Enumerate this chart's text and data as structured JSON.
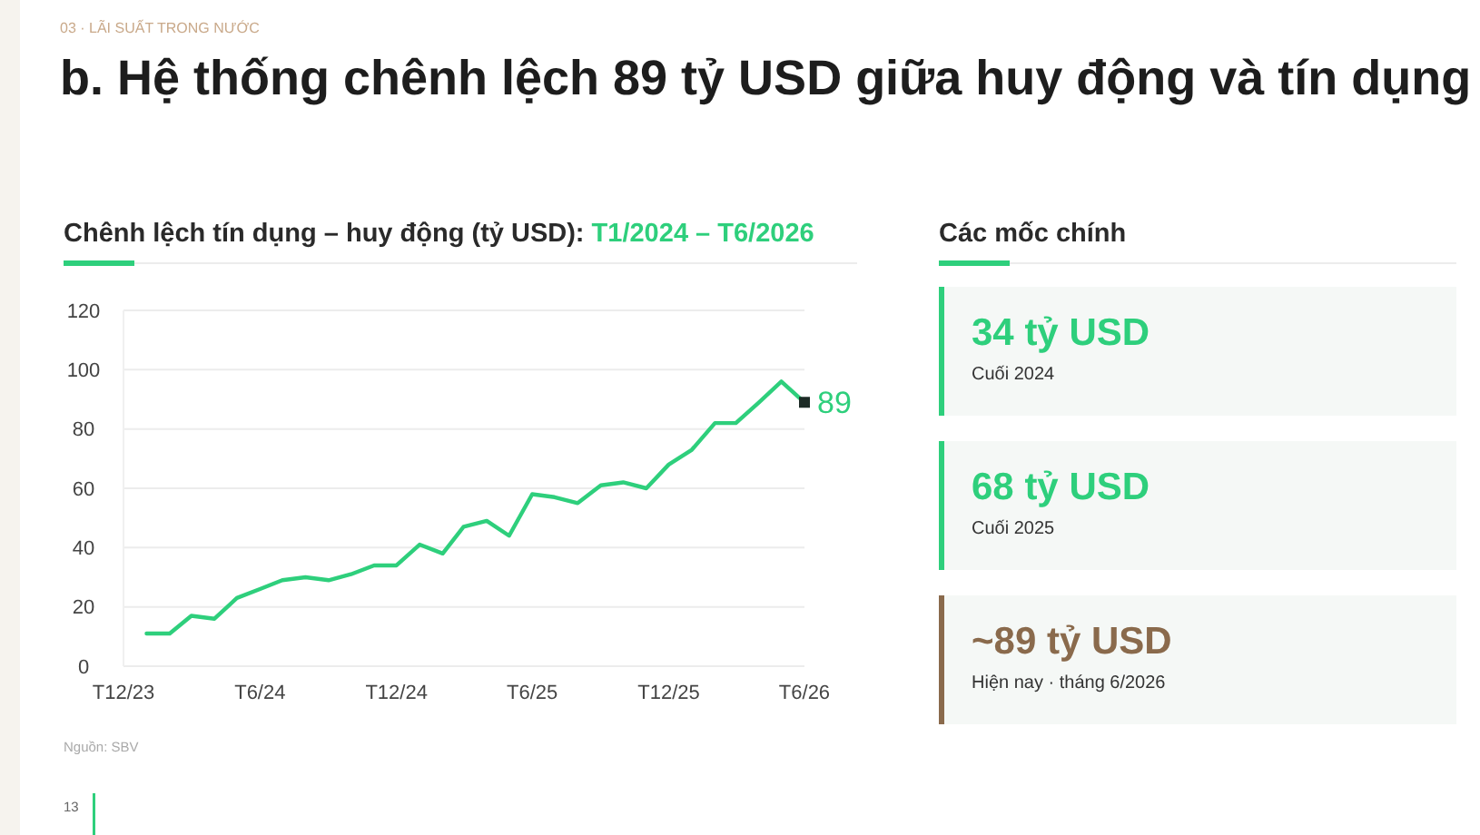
{
  "chart_data": [
    {
      "type": "line",
      "title": "Chênh lệch tín dụng – huy động (tỷ USD):",
      "subtitle": "T1/2024 – T6/2026",
      "annotations": [
        "03 · LÃI SUẤT TRONG NƯỚC",
        "b. Hệ thống chênh lệch 89 tỷ USD giữa huy động và tín dụng",
        "Nguồn: SBV",
        "13"
      ],
      "x": [
        "2024-01",
        "2024-02",
        "2024-03",
        "2024-04",
        "2024-05",
        "2024-06",
        "2024-07",
        "2024-08",
        "2024-09",
        "2024-10",
        "2024-11",
        "2024-12",
        "2025-01",
        "2025-02",
        "2025-03",
        "2025-04",
        "2025-05",
        "2025-06",
        "2025-07",
        "2025-08",
        "2025-09",
        "2025-10",
        "2025-11",
        "2025-12",
        "2026-01",
        "2026-02",
        "2026-03",
        "2026-04",
        "2026-05",
        "2026-06"
      ],
      "series": [
        {
          "color": "#2ecf7c",
          "values": [
            11,
            11,
            17,
            16,
            23,
            26,
            29,
            30,
            29,
            31,
            34,
            34,
            41,
            38,
            47,
            49,
            44,
            58,
            57,
            55,
            61,
            62,
            60,
            68,
            73,
            82,
            82,
            89,
            96,
            89
          ],
          "value_labels": [
            null,
            null,
            null,
            null,
            null,
            null,
            null,
            null,
            null,
            null,
            null,
            null,
            null,
            null,
            null,
            null,
            null,
            null,
            null,
            null,
            null,
            null,
            null,
            null,
            null,
            null,
            null,
            null,
            null,
            "89"
          ]
        }
      ],
      "xlim": [
        "2023-12",
        "2026-06"
      ],
      "xticks": [
        {
          "value": "2023-12",
          "label": "T12/23"
        },
        {
          "value": "2024-06",
          "label": "T6/24"
        },
        {
          "value": "2024-12",
          "label": "T12/24"
        },
        {
          "value": "2025-06",
          "label": "T6/25"
        },
        {
          "value": "2025-12",
          "label": "T12/25"
        },
        {
          "value": "2026-06",
          "label": "T6/26"
        }
      ],
      "ylim": [
        0,
        120
      ],
      "yticks": [
        0,
        20,
        40,
        60,
        80,
        100,
        120
      ],
      "grid": "y"
    },
    {
      "type": "other",
      "title": "Các mốc chính",
      "annotations": [
        "34 tỷ USD",
        "Cuối 2024",
        "68 tỷ USD",
        "Cuối 2025",
        "~89 tỷ USD",
        "Hiện nay · tháng 6/2026"
      ],
      "colors": [
        "#2ecf7c",
        "#2ecf7c",
        "#8a6a4c"
      ]
    }
  ]
}
